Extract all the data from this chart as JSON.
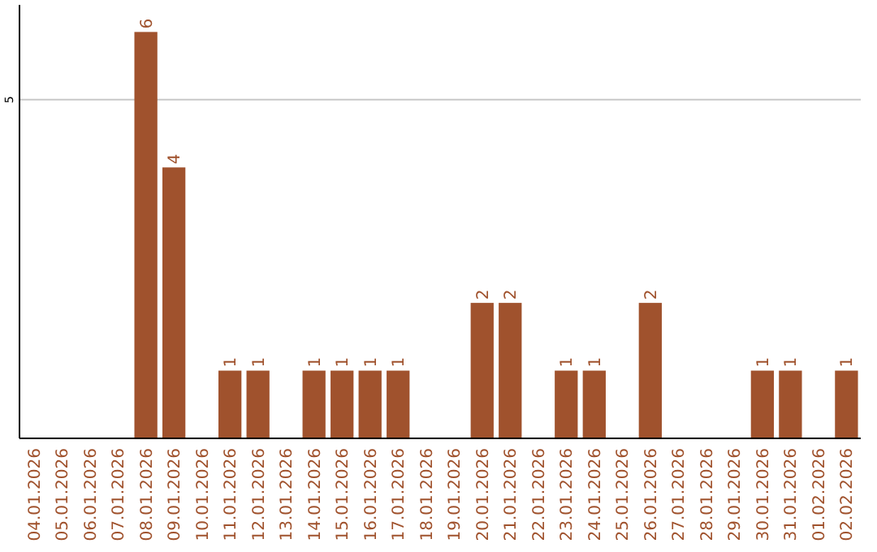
{
  "chart_data": {
    "type": "bar",
    "categories": [
      "04.01.2026",
      "05.01.2026",
      "06.01.2026",
      "07.01.2026",
      "08.01.2026",
      "09.01.2026",
      "10.01.2026",
      "11.01.2026",
      "12.01.2026",
      "13.01.2026",
      "14.01.2026",
      "15.01.2026",
      "16.01.2026",
      "17.01.2026",
      "18.01.2026",
      "19.01.2026",
      "20.01.2026",
      "21.01.2026",
      "22.01.2026",
      "23.01.2026",
      "24.01.2026",
      "25.01.2026",
      "26.01.2026",
      "27.01.2026",
      "28.01.2026",
      "29.01.2026",
      "30.01.2026",
      "31.01.2026",
      "01.02.2026",
      "02.02.2026"
    ],
    "values": [
      0,
      0,
      0,
      0,
      6,
      4,
      0,
      1,
      1,
      0,
      1,
      1,
      1,
      1,
      0,
      0,
      2,
      2,
      0,
      1,
      1,
      0,
      2,
      0,
      0,
      0,
      1,
      1,
      0,
      1
    ],
    "value_labels": [
      null,
      null,
      null,
      null,
      "6",
      "4",
      null,
      "1",
      "1",
      null,
      "1",
      "1",
      "1",
      "1",
      null,
      null,
      "2",
      "2",
      null,
      "1",
      "1",
      null,
      "2",
      null,
      null,
      null,
      "1",
      "1",
      null,
      "1"
    ],
    "color": "#a0522d",
    "ylim": [
      0,
      6.4
    ],
    "yticks": [
      5
    ],
    "grid": "y"
  }
}
